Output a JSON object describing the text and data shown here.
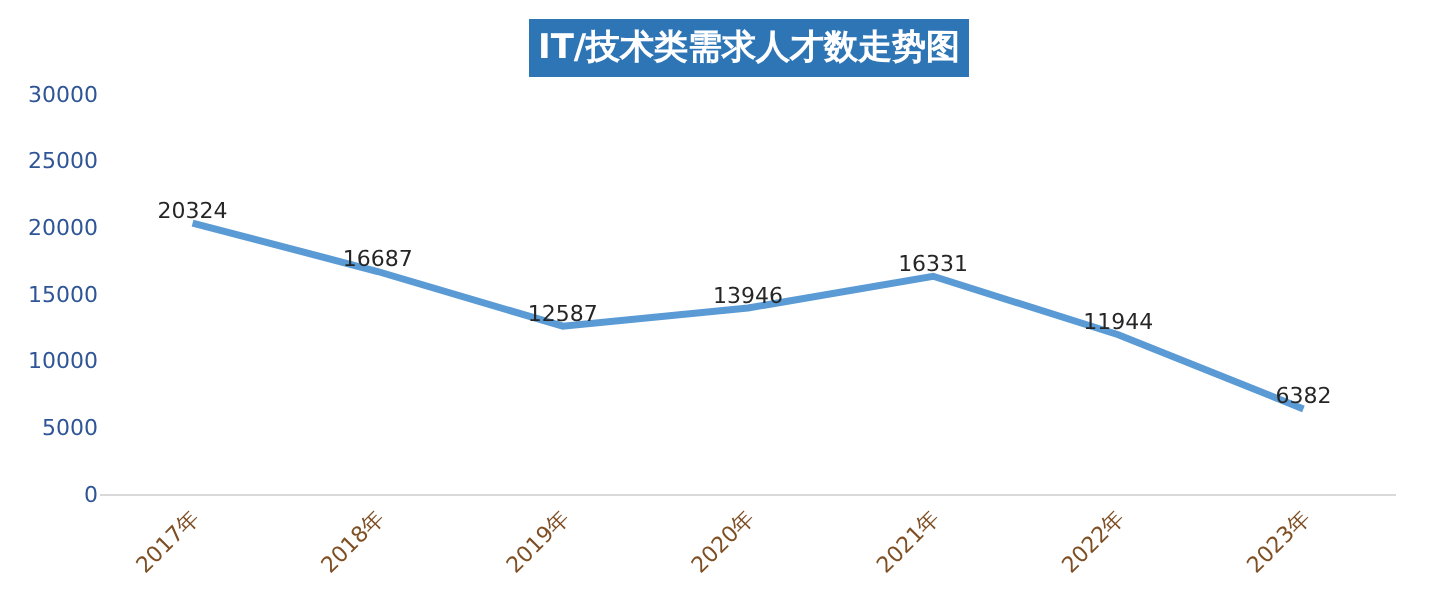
{
  "chart_data": {
    "type": "line",
    "title": "IT/技术类需求人才数走势图",
    "categories": [
      "2017年",
      "2018年",
      "2019年",
      "2020年",
      "2021年",
      "2022年",
      "2023年"
    ],
    "series": [
      {
        "color": "#5b9bd5",
        "values": [
          20324,
          16687,
          12587,
          13946,
          16331,
          11944,
          6382
        ]
      }
    ],
    "ylim": [
      0,
      30000
    ],
    "yticks": [
      0,
      5000,
      10000,
      15000,
      20000,
      25000,
      30000
    ],
    "grid": false,
    "marker": "none",
    "line_style": "solid",
    "data_labels": true
  }
}
